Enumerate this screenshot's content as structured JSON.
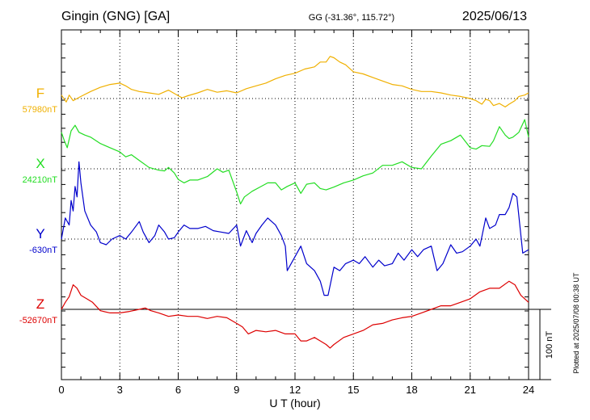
{
  "header": {
    "station": "Gingin (GNG)  [GA]",
    "coords": "GG (-31.36°, 115.72°)",
    "date": "2025/06/13"
  },
  "plotted_note": "Plotted at 2025/07/08 00:38 UT",
  "scale_label": "100 nT",
  "colors": {
    "F": "#f0b000",
    "X": "#22dd22",
    "Y": "#0000cc",
    "Z": "#dd0000",
    "axis": "#000000",
    "grid": "#000000"
  },
  "chart_data": {
    "type": "line",
    "xlabel": "U T (hour)",
    "xlim": [
      0,
      24
    ],
    "xticks": [
      0,
      3,
      6,
      9,
      12,
      15,
      18,
      21,
      24
    ],
    "xtick_labels": [
      "0",
      "3",
      "6",
      "9",
      "12",
      "15",
      "18",
      "21",
      "24"
    ],
    "grid": true,
    "units": "nT",
    "nT_per_major_division": 100,
    "series": [
      {
        "name": "F",
        "baseline_label": "57980nT",
        "color": "#f0b000",
        "x": [
          0,
          0.25,
          0.4,
          0.6,
          0.8,
          1.0,
          1.5,
          2.0,
          2.5,
          3.0,
          3.3,
          3.6,
          4.0,
          4.5,
          5.0,
          5.5,
          6.0,
          6.2,
          6.5,
          7.0,
          7.5,
          8.0,
          8.5,
          9.0,
          9.5,
          10.0,
          10.5,
          11.0,
          11.5,
          12.0,
          12.5,
          13.0,
          13.3,
          13.6,
          13.8,
          14.0,
          14.3,
          14.6,
          15.0,
          15.5,
          16.0,
          16.5,
          17.0,
          17.5,
          18.0,
          18.5,
          19.0,
          19.5,
          20.0,
          20.5,
          21.0,
          21.3,
          21.6,
          21.8,
          22.0,
          22.2,
          22.5,
          22.8,
          23.0,
          23.3,
          23.5,
          23.8,
          24.0
        ],
        "y": [
          5,
          -5,
          5,
          -3,
          0,
          3,
          10,
          16,
          20,
          22,
          18,
          13,
          10,
          8,
          6,
          12,
          4,
          1,
          4,
          8,
          13,
          9,
          11,
          8,
          14,
          18,
          22,
          28,
          33,
          36,
          42,
          45,
          52,
          52,
          60,
          58,
          52,
          48,
          38,
          35,
          30,
          25,
          20,
          18,
          13,
          10,
          10,
          8,
          5,
          3,
          0,
          -3,
          -8,
          -1,
          -3,
          -10,
          -7,
          -12,
          -8,
          -3,
          3,
          5,
          8
        ]
      },
      {
        "name": "X",
        "baseline_label": "24210nT",
        "color": "#22dd22",
        "x": [
          0,
          0.15,
          0.3,
          0.5,
          0.7,
          0.9,
          1.2,
          1.5,
          2.0,
          2.5,
          3.0,
          3.3,
          3.6,
          4.0,
          4.5,
          5.0,
          5.3,
          5.5,
          5.8,
          6.0,
          6.3,
          6.6,
          7.0,
          7.5,
          8.0,
          8.3,
          8.6,
          9.0,
          9.2,
          9.4,
          9.8,
          10.2,
          10.6,
          11.0,
          11.3,
          11.6,
          12.0,
          12.3,
          12.6,
          13.0,
          13.3,
          13.6,
          14.0,
          14.5,
          15.0,
          15.5,
          16.0,
          16.5,
          17.0,
          17.5,
          18.0,
          18.5,
          19.0,
          19.5,
          20.0,
          20.5,
          21.0,
          21.3,
          21.6,
          22.0,
          22.2,
          22.5,
          22.8,
          23.0,
          23.2,
          23.5,
          23.8,
          24.0
        ],
        "y": [
          52,
          40,
          30,
          54,
          62,
          52,
          48,
          45,
          36,
          30,
          24,
          17,
          20,
          12,
          2,
          -2,
          -3,
          2,
          -6,
          -15,
          -20,
          -16,
          -16,
          -11,
          0,
          -5,
          -2,
          -33,
          -50,
          -40,
          -32,
          -26,
          -20,
          -20,
          -30,
          -25,
          -20,
          -35,
          -22,
          -20,
          -28,
          -30,
          -26,
          -20,
          -16,
          -10,
          -6,
          5,
          5,
          10,
          2,
          0,
          18,
          35,
          40,
          48,
          30,
          28,
          33,
          32,
          40,
          60,
          48,
          43,
          45,
          52,
          70,
          45
        ]
      },
      {
        "name": "Y",
        "baseline_label": "-630nT",
        "color": "#0000cc",
        "x": [
          0,
          0.2,
          0.4,
          0.5,
          0.6,
          0.7,
          0.8,
          0.9,
          1.0,
          1.2,
          1.5,
          1.8,
          2.0,
          2.3,
          2.6,
          3.0,
          3.3,
          3.6,
          4.0,
          4.2,
          4.5,
          4.8,
          5.0,
          5.3,
          5.5,
          5.8,
          6.0,
          6.3,
          6.6,
          7.0,
          7.4,
          7.8,
          8.2,
          8.6,
          9.0,
          9.2,
          9.5,
          9.8,
          10.0,
          10.3,
          10.6,
          11.0,
          11.3,
          11.5,
          11.6,
          11.8,
          12.0,
          12.3,
          12.6,
          13.0,
          13.3,
          13.5,
          13.7,
          14.0,
          14.3,
          14.6,
          15.0,
          15.3,
          15.6,
          16.0,
          16.3,
          16.6,
          17.0,
          17.3,
          17.6,
          18.0,
          18.3,
          18.6,
          19.0,
          19.3,
          19.6,
          20.0,
          20.3,
          20.6,
          21.0,
          21.3,
          21.5,
          21.8,
          22.0,
          22.3,
          22.5,
          22.8,
          23.0,
          23.2,
          23.4,
          23.7,
          24.0
        ],
        "y": [
          0,
          30,
          20,
          55,
          40,
          75,
          60,
          110,
          80,
          40,
          20,
          10,
          -5,
          -8,
          0,
          5,
          0,
          10,
          25,
          10,
          -5,
          5,
          20,
          10,
          0,
          2,
          10,
          20,
          15,
          15,
          18,
          12,
          10,
          8,
          20,
          -10,
          12,
          -5,
          8,
          20,
          30,
          20,
          5,
          -10,
          -45,
          -35,
          -25,
          -10,
          -35,
          -45,
          -60,
          -80,
          -80,
          -40,
          -45,
          -35,
          -30,
          -35,
          -25,
          -40,
          -30,
          -38,
          -35,
          -20,
          -30,
          -15,
          -25,
          -15,
          -10,
          -45,
          -35,
          -8,
          -20,
          -18,
          -10,
          0,
          -10,
          30,
          15,
          20,
          35,
          35,
          45,
          65,
          60,
          -20,
          -15
        ]
      },
      {
        "name": "Z",
        "baseline_label": "-52670nT",
        "color": "#dd0000",
        "x": [
          0,
          0.2,
          0.4,
          0.6,
          0.8,
          1.0,
          1.3,
          1.6,
          2.0,
          2.5,
          3.0,
          3.5,
          4.0,
          4.3,
          4.6,
          5.0,
          5.5,
          6.0,
          6.5,
          7.0,
          7.5,
          8.0,
          8.5,
          9.0,
          9.3,
          9.6,
          10.0,
          10.5,
          11.0,
          11.5,
          12.0,
          12.3,
          12.6,
          13.0,
          13.3,
          13.6,
          13.8,
          14.0,
          14.5,
          15.0,
          15.5,
          16.0,
          16.5,
          17.0,
          17.5,
          18.0,
          18.5,
          19.0,
          19.5,
          20.0,
          20.5,
          21.0,
          21.5,
          22.0,
          22.5,
          23.0,
          23.3,
          23.6,
          24.0
        ],
        "y": [
          0,
          10,
          18,
          35,
          30,
          20,
          15,
          10,
          -2,
          -5,
          -5,
          -3,
          0,
          2,
          -2,
          -5,
          -10,
          -8,
          -10,
          -10,
          -13,
          -10,
          -12,
          -20,
          -25,
          -35,
          -30,
          -32,
          -30,
          -35,
          -35,
          -45,
          -45,
          -40,
          -45,
          -50,
          -55,
          -50,
          -40,
          -35,
          -30,
          -22,
          -20,
          -15,
          -12,
          -10,
          -5,
          0,
          5,
          5,
          10,
          15,
          25,
          30,
          30,
          40,
          35,
          20,
          10
        ]
      }
    ]
  }
}
